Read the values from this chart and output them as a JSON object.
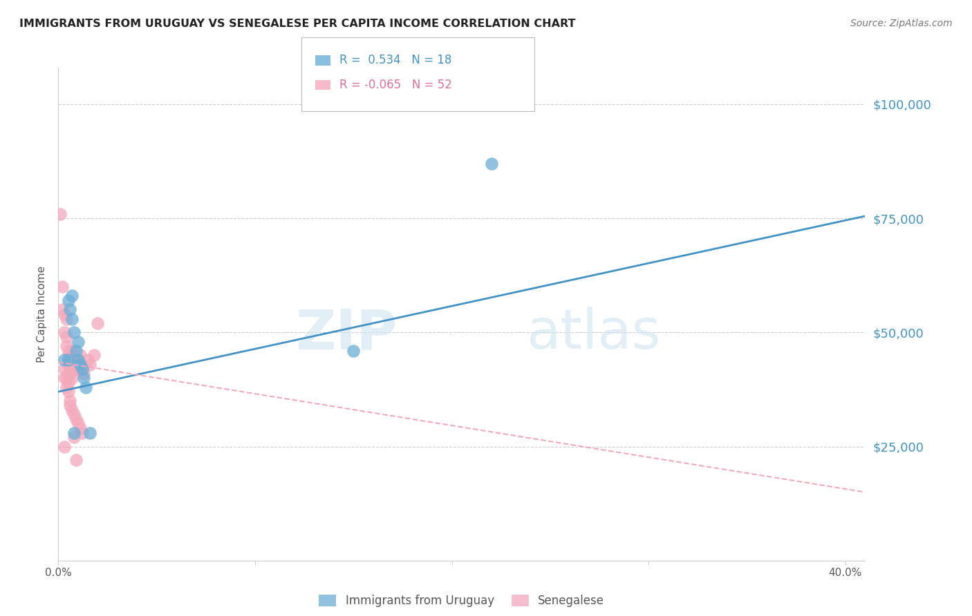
{
  "title": "IMMIGRANTS FROM URUGUAY VS SENEGALESE PER CAPITA INCOME CORRELATION CHART",
  "source": "Source: ZipAtlas.com",
  "ylabel": "Per Capita Income",
  "ytick_labels": [
    "$25,000",
    "$50,000",
    "$75,000",
    "$100,000"
  ],
  "ytick_values": [
    25000,
    50000,
    75000,
    100000
  ],
  "ylim": [
    0,
    108000
  ],
  "xlim": [
    0.0,
    0.41
  ],
  "blue_color": "#6baed6",
  "pink_color": "#f4a9bb",
  "blue_line_color": "#4292c6",
  "pink_line_color": "#f4a9bb",
  "blue_line": {
    "x0": 0.0,
    "x1": 0.41,
    "y0": 37000,
    "y1": 75500
  },
  "pink_line": {
    "x0": 0.0,
    "x1": 0.41,
    "y0": 43500,
    "y1": 15000
  },
  "uruguay_x": [
    0.003,
    0.005,
    0.006,
    0.007,
    0.007,
    0.008,
    0.009,
    0.01,
    0.01,
    0.011,
    0.012,
    0.013,
    0.014,
    0.016,
    0.15,
    0.22,
    0.005,
    0.008
  ],
  "uruguay_y": [
    44000,
    57000,
    55000,
    53000,
    58000,
    50000,
    46000,
    48000,
    44000,
    43000,
    42000,
    40000,
    38000,
    28000,
    46000,
    87000,
    44000,
    28000
  ],
  "senegal_x": [
    0.001,
    0.002,
    0.002,
    0.003,
    0.003,
    0.004,
    0.004,
    0.004,
    0.005,
    0.005,
    0.005,
    0.005,
    0.006,
    0.006,
    0.006,
    0.007,
    0.007,
    0.008,
    0.008,
    0.009,
    0.009,
    0.01,
    0.01,
    0.01,
    0.011,
    0.011,
    0.012,
    0.013,
    0.015,
    0.016,
    0.018,
    0.02,
    0.003,
    0.004,
    0.005,
    0.006,
    0.007,
    0.004,
    0.005,
    0.006,
    0.006,
    0.007,
    0.008,
    0.009,
    0.01,
    0.011,
    0.012,
    0.003,
    0.008,
    0.009,
    0.003,
    0.005
  ],
  "senegal_y": [
    76000,
    60000,
    55000,
    54000,
    50000,
    53000,
    49000,
    47000,
    46000,
    45000,
    44000,
    43000,
    44000,
    43000,
    42000,
    46000,
    44000,
    44000,
    43000,
    43000,
    42000,
    44000,
    43000,
    42000,
    45000,
    43000,
    42000,
    41000,
    44000,
    43000,
    45000,
    52000,
    40000,
    40000,
    39000,
    41000,
    40000,
    38000,
    37000,
    35000,
    34000,
    33000,
    32000,
    31000,
    30000,
    29000,
    28000,
    25000,
    27000,
    22000,
    42000,
    41000
  ],
  "legend_r1_text": "R =  0.534   N = 18",
  "legend_r2_text": "R = -0.065   N = 52",
  "legend_blue_color": "#4292c6",
  "legend_pink_color": "#e07090",
  "watermark_zip": "ZIP",
  "watermark_atlas": "atlas"
}
